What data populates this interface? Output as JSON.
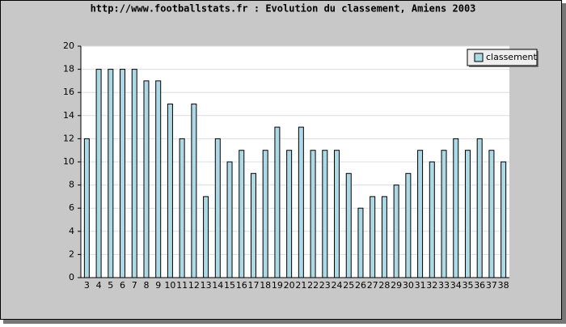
{
  "chart_data": {
    "type": "bar",
    "title": "http://www.footballstats.fr : Evolution du classement, Amiens 2003",
    "categories": [
      "3",
      "4",
      "5",
      "6",
      "7",
      "8",
      "9",
      "10",
      "11",
      "12",
      "13",
      "14",
      "15",
      "16",
      "17",
      "18",
      "19",
      "20",
      "21",
      "22",
      "23",
      "24",
      "25",
      "26",
      "27",
      "28",
      "29",
      "30",
      "31",
      "32",
      "33",
      "34",
      "35",
      "36",
      "37",
      "38"
    ],
    "series": [
      {
        "name": "classement",
        "color": "#add8e6",
        "values": [
          12,
          18,
          18,
          18,
          18,
          17,
          17,
          15,
          12,
          15,
          7,
          12,
          10,
          11,
          9,
          11,
          13,
          11,
          13,
          11,
          11,
          11,
          9,
          6,
          7,
          7,
          8,
          9,
          11,
          10,
          11,
          12,
          11,
          12,
          11,
          10
        ]
      }
    ],
    "ylim": [
      0,
      20
    ],
    "yticks": [
      0,
      2,
      4,
      6,
      8,
      10,
      12,
      14,
      16,
      18,
      20
    ],
    "grid": true,
    "legend": "top-right"
  }
}
